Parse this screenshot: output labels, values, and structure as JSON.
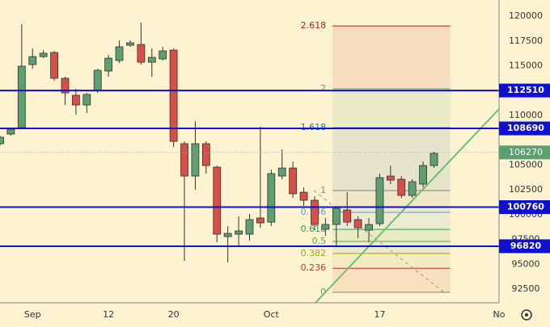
{
  "chart_data": {
    "type": "candlestick",
    "xlim": [
      0,
      46
    ],
    "xticks": [
      {
        "value": 3,
        "label": "Sep"
      },
      {
        "value": 10,
        "label": "12"
      },
      {
        "value": 16,
        "label": "20"
      },
      {
        "value": 25,
        "label": "Oct"
      },
      {
        "value": 35,
        "label": "17"
      },
      {
        "value": 46,
        "label": "No"
      }
    ],
    "ylim": [
      91120,
      121630
    ],
    "yticks": [
      92500,
      95000,
      97500,
      100000,
      102500,
      105000,
      110000,
      115000,
      117500,
      120000
    ],
    "up_color": "#5e9e70",
    "down_color": "#d65048",
    "open": [
      107150,
      108120,
      108770,
      115120,
      115930,
      116340,
      113740,
      112030,
      111050,
      112520,
      114470,
      115530,
      117070,
      117150,
      115360,
      115690,
      116580,
      107150,
      103890,
      107150,
      104790,
      97790,
      98030,
      98030,
      99660,
      99250,
      103890,
      104700,
      102260,
      101450,
      98520,
      99010,
      100470,
      99500,
      98440,
      99090,
      103890,
      103570,
      101940,
      103080,
      104950
    ],
    "high": [
      107950,
      108770,
      119190,
      116750,
      116580,
      116500,
      113900,
      112680,
      112270,
      114710,
      116090,
      117560,
      117560,
      119350,
      116750,
      116910,
      116750,
      107390,
      109420,
      107390,
      104950,
      98850,
      99820,
      100070,
      108850,
      104540,
      106580,
      105360,
      102750,
      101860,
      99660,
      100880,
      102260,
      99820,
      99660,
      104140,
      104950,
      103890,
      103570,
      105360,
      106330
    ],
    "low": [
      106950,
      107960,
      108610,
      114710,
      115770,
      113490,
      111050,
      110070,
      110240,
      112270,
      113900,
      115280,
      116910,
      115120,
      113900,
      115530,
      106820,
      95350,
      102510,
      104140,
      97220,
      95190,
      96810,
      97380,
      98680,
      98850,
      103570,
      101690,
      100880,
      98440,
      97870,
      96810,
      98850,
      97630,
      97220,
      98850,
      103080,
      101690,
      101690,
      102750,
      104700
    ],
    "close": [
      107800,
      108610,
      114960,
      115930,
      116260,
      113740,
      112270,
      111050,
      112110,
      114550,
      115770,
      116910,
      117320,
      115360,
      115850,
      116500,
      107390,
      103890,
      107150,
      104950,
      98030,
      98110,
      98360,
      99500,
      99170,
      104140,
      104700,
      102100,
      101450,
      99010,
      99010,
      100640,
      99250,
      98680,
      99010,
      103730,
      103480,
      101940,
      103320,
      104950,
      106170
    ],
    "price_lines": [
      {
        "value": 112510,
        "color": "#1010d0"
      },
      {
        "value": 108690,
        "color": "#1010d0"
      },
      {
        "value": 100760,
        "color": "#1010d0"
      },
      {
        "value": 96820,
        "color": "#1010d0"
      }
    ],
    "last_price": {
      "value": 106270,
      "color": "#5e9e70"
    },
    "fib": {
      "p0": 92180,
      "p1": 102430,
      "start": 30,
      "end": 41,
      "levels": [
        {
          "ratio": 2.618,
          "color": "#b22222"
        },
        {
          "ratio": 2,
          "color": "#3cb371"
        },
        {
          "ratio": 1.618,
          "color": "#1e6fb0"
        },
        {
          "ratio": 1,
          "color": "#808080"
        },
        {
          "ratio": 0.786,
          "color": "#4aa3df"
        },
        {
          "ratio": 0.618,
          "color": "#2e9e4f"
        },
        {
          "ratio": 0.5,
          "color": "#4caf50"
        },
        {
          "ratio": 0.382,
          "color": "#9aa51c"
        },
        {
          "ratio": 0.236,
          "color": "#c0392b"
        },
        {
          "ratio": 0,
          "color": "#808080"
        }
      ]
    }
  }
}
